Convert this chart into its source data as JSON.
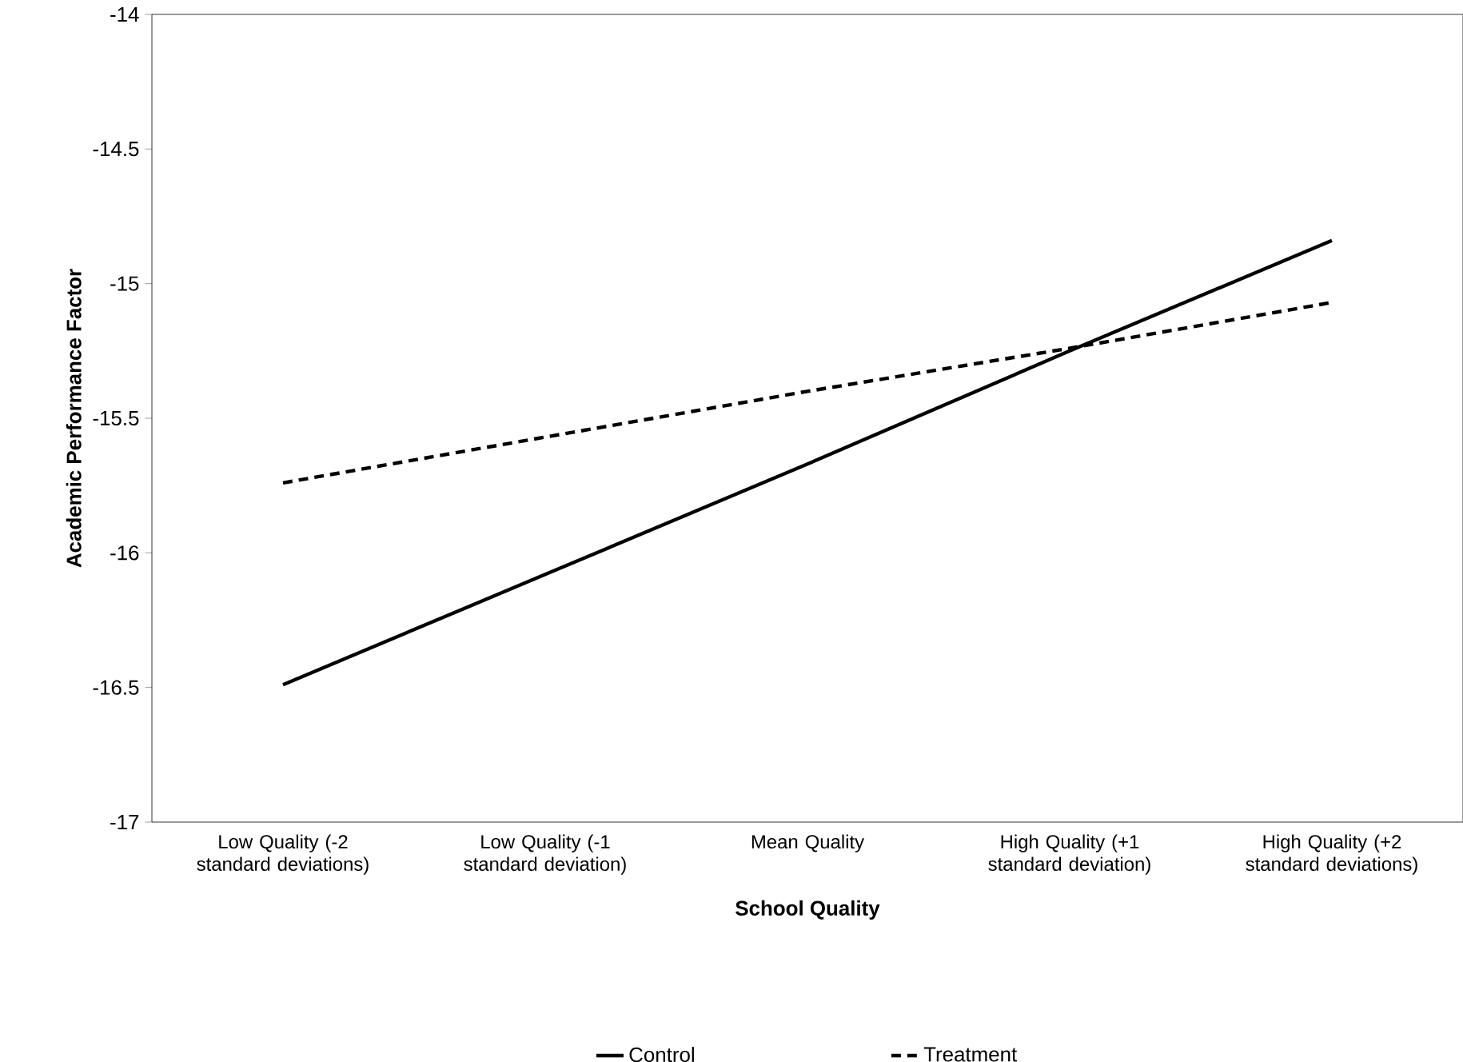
{
  "chart_data": {
    "type": "line",
    "xlabel": "School Quality",
    "ylabel": "Academic Performance Factor",
    "categories": [
      "Low Quality (-2 standard deviations)",
      "Low Quality (-1 standard deviation)",
      "Mean Quality",
      "High Quality (+1 standard deviation)",
      "High Quality (+2 standard deviations)"
    ],
    "series": [
      {
        "name": "Control",
        "color": "#000000",
        "line_style": "solid",
        "values": [
          -16.49,
          -16.08,
          -15.67,
          -15.25,
          -14.84
        ]
      },
      {
        "name": "Treatment",
        "color": "#000000",
        "line_style": "dashed",
        "values": [
          -15.74,
          -15.57,
          -15.4,
          -15.24,
          -15.07
        ]
      }
    ],
    "ylim": [
      -17,
      -14
    ],
    "yticks": [
      -17,
      -16.5,
      -16,
      -15.5,
      -15,
      -14.5,
      -14
    ],
    "grid": false,
    "legend": "bottom",
    "marker": "none"
  }
}
